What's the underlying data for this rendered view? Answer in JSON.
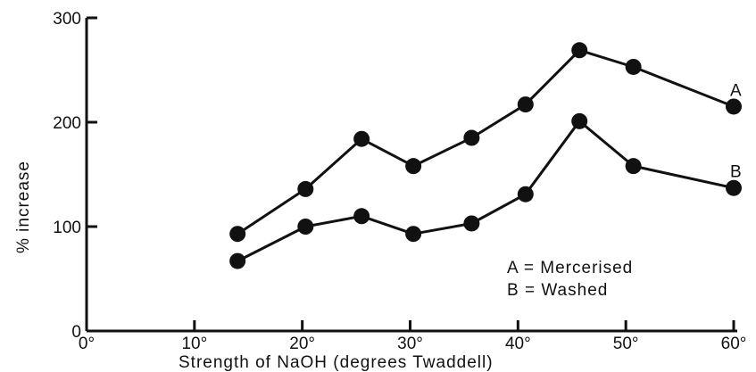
{
  "chart_data": {
    "type": "line",
    "title": "",
    "xlabel": "Strength of NaOH (degrees Twaddell)",
    "ylabel": "% increase",
    "xlim": [
      0,
      60
    ],
    "ylim": [
      0,
      300
    ],
    "x_ticks": [
      0,
      10,
      20,
      30,
      40,
      50,
      60
    ],
    "x_tick_labels": [
      "0°",
      "10°",
      "20°",
      "30°",
      "40°",
      "50°",
      "60°"
    ],
    "y_ticks": [
      0,
      100,
      200,
      300
    ],
    "y_tick_labels": [
      "0",
      "100",
      "200",
      "300"
    ],
    "grid": false,
    "series": [
      {
        "name": "A",
        "x": [
          14,
          20.3,
          25.5,
          30.3,
          35.7,
          40.7,
          45.7,
          50.7,
          60
        ],
        "y": [
          93,
          136,
          184,
          158,
          185,
          217,
          269,
          253,
          215
        ]
      },
      {
        "name": "B",
        "x": [
          14,
          20.3,
          25.5,
          30.3,
          35.7,
          40.7,
          45.7,
          50.7,
          60
        ],
        "y": [
          67,
          100,
          110,
          93,
          103,
          131,
          201,
          158,
          137
        ]
      }
    ],
    "legend": {
      "placement": "lower-right",
      "entries": [
        "A = Mercerised",
        "B = Washed"
      ]
    }
  },
  "colors": {
    "ink": "#111111",
    "background": "#ffffff"
  }
}
